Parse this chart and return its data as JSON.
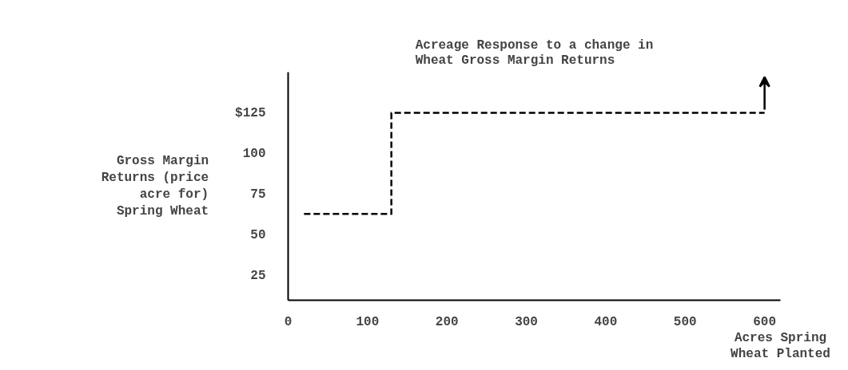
{
  "chart_data": {
    "type": "step",
    "title": "Acreage Response to a change in\nWheat Gross Margin Returns",
    "xlabel": "Acres Spring\nWheat Planted",
    "ylabel": "Gross Margin\nReturns (price\nacre for)\nSpring Wheat",
    "x": [
      20,
      130,
      600
    ],
    "series": [
      {
        "color": "#000000",
        "values": [
          63,
          125,
          125
        ]
      }
    ],
    "xlim": [
      0,
      620
    ],
    "ylim": [
      10,
      150
    ],
    "xticks": [
      0,
      100,
      200,
      300,
      400,
      500,
      600
    ],
    "yticks": [
      25,
      50,
      75,
      100,
      {
        "value": 125,
        "label": "$125"
      }
    ],
    "line_style": "dashed",
    "grid": false
  }
}
